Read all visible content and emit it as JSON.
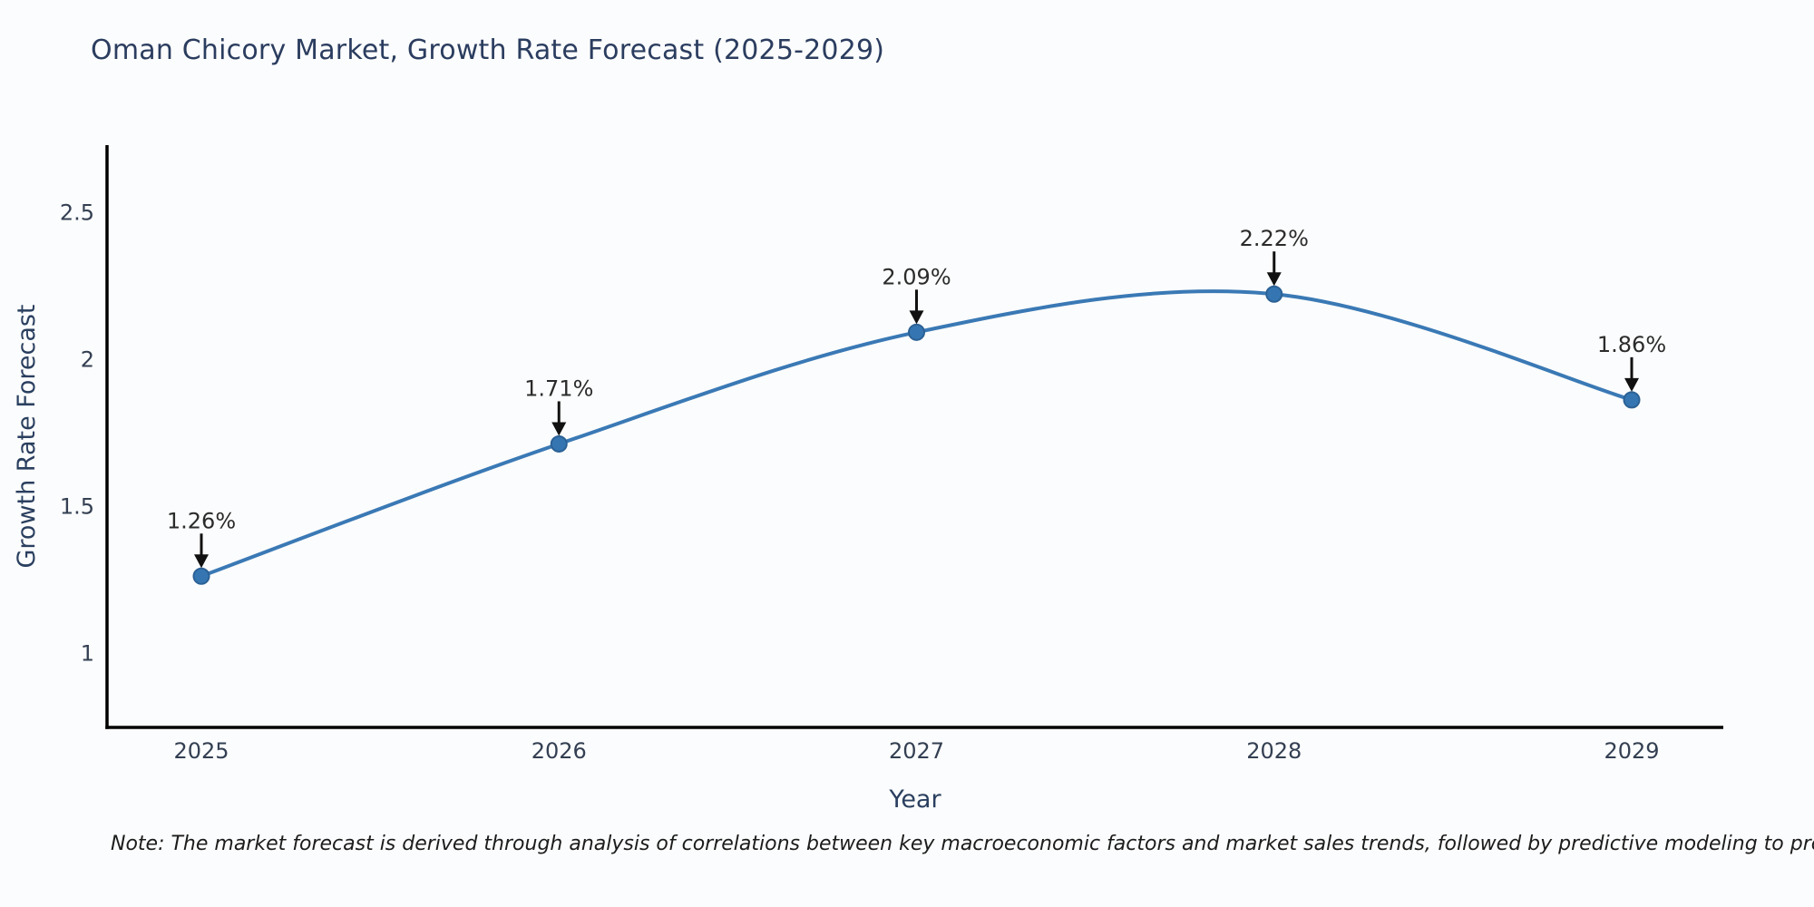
{
  "chart": {
    "title": "Oman Chicory Market, Growth Rate Forecast (2025-2029)",
    "note": "Note: The market forecast is derived through analysis of correlations between key macroeconomic factors and market sales trends, followed by predictive modeling to project future sales"
  },
  "chart_data": {
    "type": "line",
    "title": "Oman Chicory Market, Growth Rate Forecast (2025-2029)",
    "xlabel": "Year",
    "ylabel": "Growth Rate Forecast",
    "categories": [
      "2025",
      "2026",
      "2027",
      "2028",
      "2029"
    ],
    "values": [
      1.26,
      1.71,
      2.09,
      2.22,
      1.86
    ],
    "point_labels": [
      "1.26%",
      "1.71%",
      "2.09%",
      "2.22%",
      "1.86%"
    ],
    "y_ticks": [
      1,
      1.5,
      2,
      2.5
    ],
    "y_tick_labels": [
      "1",
      "1.5",
      "2",
      "2.5"
    ],
    "ylim": [
      0.75,
      2.73
    ],
    "grid": false,
    "line_shape": "spline",
    "legend": "none",
    "colors": {
      "line": "#3a79b5",
      "marker_fill": "#3576b2",
      "marker_edge": "#2b6195",
      "axis": "#000000",
      "axis_title_text": "#2a3f5f",
      "tick_text": "#333f52",
      "annotation_text": "#2b2b2b",
      "arrow": "#111111"
    }
  }
}
